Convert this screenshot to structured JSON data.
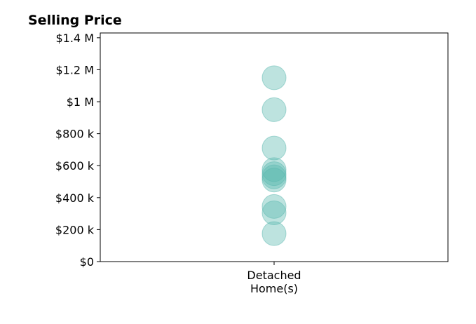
{
  "chart_data": {
    "type": "scatter",
    "title": "Selling Price",
    "xlabel": "",
    "ylabel": "",
    "categories": [
      [
        "Detached",
        "Home(s)"
      ]
    ],
    "ylim": [
      0,
      1430000
    ],
    "yticks": [
      0,
      200000,
      400000,
      600000,
      800000,
      1000000,
      1200000,
      1400000
    ],
    "ytick_labels": [
      "$0",
      "$200 k",
      "$400 k",
      "$600 k",
      "$800 k",
      "$1 M",
      "$1.2 M",
      "$1.4 M"
    ],
    "series": [
      {
        "category_index": 0,
        "values": [
          1150000,
          950000,
          710000,
          575000,
          550000,
          530000,
          510000,
          345000,
          305000,
          175000
        ]
      }
    ],
    "grid": false,
    "legend": "none",
    "marker_color": "#5bb8b0",
    "marker_opacity": 0.4
  }
}
